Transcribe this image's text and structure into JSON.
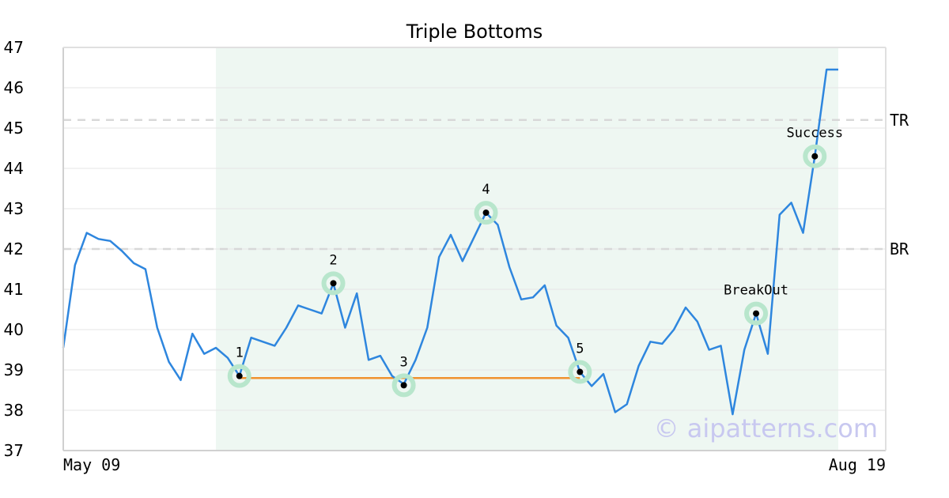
{
  "chart_data": {
    "type": "line",
    "title": "Triple Bottoms",
    "xlabel": "",
    "ylabel": "",
    "ylim": [
      37,
      47
    ],
    "yticks": [
      37,
      38,
      39,
      40,
      41,
      42,
      43,
      44,
      45,
      46,
      47
    ],
    "xtick_labels": [
      "May 09",
      "Aug 19"
    ],
    "grid": true,
    "series": [
      {
        "color": "#2e86de",
        "values": [
          39.55,
          41.6,
          42.4,
          42.25,
          42.2,
          41.95,
          41.65,
          41.5,
          40.05,
          39.2,
          38.75,
          39.9,
          39.4,
          39.55,
          39.3,
          38.85,
          39.8,
          39.7,
          39.6,
          40.05,
          40.6,
          40.5,
          40.4,
          41.15,
          40.05,
          40.9,
          39.25,
          39.35,
          38.85,
          38.65,
          39.25,
          40.05,
          41.8,
          42.35,
          41.7,
          42.3,
          42.9,
          42.6,
          41.55,
          40.75,
          40.8,
          41.1,
          40.1,
          39.8,
          38.95,
          38.6,
          38.9,
          37.95,
          38.15,
          39.1,
          39.7,
          39.65,
          40.0,
          40.55,
          40.2,
          39.5,
          39.6,
          37.9,
          39.5,
          40.4,
          39.4,
          42.85,
          43.15,
          42.4,
          44.3,
          46.45,
          46.45
        ]
      }
    ],
    "highlight_range": {
      "from_index": 13,
      "to_index": 66,
      "color": "#eef7f2"
    },
    "reference_lines": [
      {
        "label": "TR",
        "value": 45.2
      },
      {
        "label": "BR",
        "value": 42.0
      }
    ],
    "support_line": {
      "from_index": 15,
      "to_index": 44,
      "value": 38.8,
      "color": "#f0922e"
    },
    "annotations": [
      {
        "label": "1",
        "index": 15,
        "value": 38.85,
        "label_pos": "above"
      },
      {
        "label": "2",
        "index": 23,
        "value": 41.15,
        "label_pos": "above"
      },
      {
        "label": "3",
        "index": 29,
        "value": 38.62,
        "label_pos": "above"
      },
      {
        "label": "4",
        "index": 36,
        "value": 42.9,
        "label_pos": "above"
      },
      {
        "label": "5",
        "index": 44,
        "value": 38.95,
        "label_pos": "above"
      },
      {
        "label": "BreakOut",
        "index": 59,
        "value": 40.4,
        "label_pos": "above"
      },
      {
        "label": "Success",
        "index": 64,
        "value": 44.3,
        "label_pos": "above"
      }
    ],
    "watermark": "© aipatterns.com"
  }
}
